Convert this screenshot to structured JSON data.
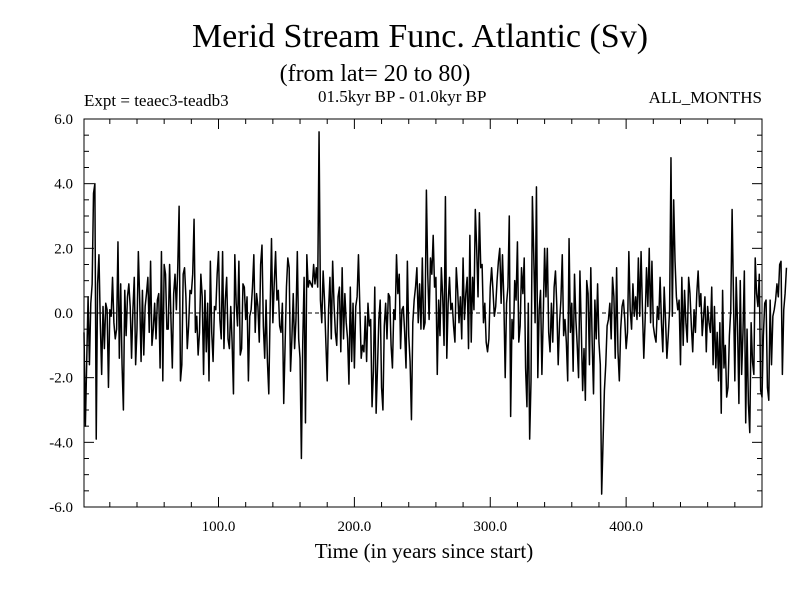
{
  "header": {
    "title": "Merid Stream Func. Atlantic (Sv)",
    "subtitle": "(from lat= 20 to 80)",
    "experiment": "Expt = teaec3-teadb3",
    "period": "01.5kyr BP - 01.0kyr BP",
    "months": "ALL_MONTHS"
  },
  "chart_data": {
    "type": "line",
    "xlabel": "Time (in years since start)",
    "ylabel": "",
    "xlim": [
      1,
      500
    ],
    "ylim": [
      -6,
      6
    ],
    "xticks": [
      100,
      200,
      300,
      400
    ],
    "xtick_labels": [
      "100.0",
      "200.0",
      "300.0",
      "400.0"
    ],
    "yticks": [
      -6,
      -4,
      -2,
      0,
      2,
      4,
      6
    ],
    "ytick_labels": [
      "-6.0",
      "-4.0",
      "-2.0",
      "0.0",
      "2.0",
      "4.0",
      "6.0"
    ],
    "zero_line": true,
    "grid": false,
    "series": [
      {
        "color": "#000000",
        "x_start": 1,
        "x_step": 1,
        "values": [
          -0.6,
          -3.5,
          -1.5,
          0.5,
          -1.6,
          0.3,
          0.9,
          3.7,
          4.0,
          -3.9,
          0.9,
          1.8,
          -0.3,
          -1.9,
          0.2,
          -1.1,
          0.3,
          0.1,
          -2.3,
          0.1,
          -0.1,
          1.1,
          -0.3,
          -0.8,
          -0.5,
          2.2,
          -1.4,
          0.9,
          -1.6,
          -3.0,
          0.7,
          -0.7,
          0.5,
          0.9,
          0.2,
          -1.4,
          0.1,
          1.1,
          -1.6,
          -0.5,
          1.9,
          0.4,
          -1.5,
          0.7,
          -1.3,
          0.2,
          0.6,
          1.1,
          -0.6,
          1.6,
          -1.0,
          -0.5,
          0.3,
          -0.8,
          0.4,
          0.6,
          -1.7,
          1.9,
          -2.1,
          1.5,
          1.2,
          -0.5,
          -0.5,
          1.5,
          -0.2,
          -1.7,
          0.6,
          1.2,
          0.1,
          1.4,
          3.3,
          -2.1,
          -1.6,
          1.2,
          1.4,
          0.5,
          -1.1,
          -0.4,
          0.7,
          0.6,
          1.2,
          2.9,
          -0.6,
          -0.1,
          -1.3,
          -0.6,
          1.2,
          0.5,
          -1.9,
          0.7,
          -1.2,
          0.3,
          -2.1,
          1.6,
          -0.6,
          -1.5,
          0.2,
          0.1,
          1.2,
          1.9,
          -0.2,
          -0.8,
          1.9,
          -1.1,
          0.4,
          1.1,
          -0.8,
          -1.1,
          0.2,
          -0.9,
          -2.5,
          1.8,
          0.3,
          -0.4,
          1.6,
          -1.3,
          -1.1,
          0.9,
          0.8,
          -0.2,
          0.5,
          -2.1,
          -0.1,
          0.1,
          0.8,
          1.8,
          -0.6,
          0.6,
          0.2,
          -0.9,
          1.5,
          2.1,
          -0.4,
          -1.4,
          0.4,
          -1.5,
          -2.5,
          0.1,
          2.3,
          -0.3,
          0.9,
          1.9,
          0.4,
          0.7,
          -0.4,
          -0.6,
          0.3,
          -2.8,
          -1.0,
          0.8,
          1.7,
          1.4,
          -1.8,
          -0.8,
          0.6,
          -1.1,
          -0.2,
          1.9,
          -0.8,
          -1.4,
          -4.5,
          -0.9,
          1.1,
          -3.4,
          1.8,
          0.8,
          1.0,
          0.9,
          0.8,
          1.5,
          0.9,
          1.4,
          0.8,
          5.6,
          0.4,
          -0.3,
          1.3,
          0.4,
          -0.9,
          -2.1,
          0.1,
          1.1,
          -0.8,
          1.6,
          0.3,
          -0.6,
          -1.0,
          0.5,
          0.8,
          -1.2,
          1.4,
          -0.8,
          0.6,
          -0.3,
          -0.8,
          -2.2,
          0.8,
          -1.5,
          0.3,
          -1.7,
          0.2,
          0.5,
          1.8,
          0.2,
          -1.4,
          -1.0,
          -1.2,
          -0.1,
          -1.5,
          0.3,
          -0.4,
          -0.2,
          -2.9,
          -1.8,
          0.8,
          -3.1,
          -1.7,
          -0.2,
          0.4,
          -2.3,
          -3.0,
          -0.4,
          0.3,
          -0.8,
          0.6,
          0.5,
          -1.0,
          -1.7,
          0.1,
          -0.2,
          1.8,
          0.6,
          1.2,
          -1.1,
          0.1,
          0.2,
          -0.6,
          -1.7,
          1.6,
          -0.7,
          -1.5,
          -3.3,
          -0.3,
          0.4,
          0.8,
          1.4,
          -0.3,
          0.9,
          -0.5,
          1.7,
          -0.5,
          -0.3,
          3.8,
          1.2,
          -0.2,
          1.7,
          1.2,
          2.4,
          0.8,
          1.1,
          -1.9,
          0.4,
          -0.7,
          1.4,
          0.5,
          -1.0,
          3.6,
          -1.4,
          0.3,
          1.1,
          0.1,
          0.3,
          -0.4,
          -0.9,
          1.4,
          0.7,
          -0.3,
          0.5,
          -0.8,
          1.7,
          -0.2,
          0.6,
          1.1,
          -1.1,
          2.4,
          -0.9,
          1.1,
          0.1,
          3.2,
          2.0,
          0.5,
          3.1,
          1.4,
          1.5,
          -0.3,
          0.3,
          -0.9,
          -1.2,
          -0.8,
          0.8,
          1.4,
          0.7,
          -0.1,
          0.2,
          1.0,
          1.6,
          2.0,
          0.3,
          1.8,
          0.4,
          -2.0,
          0.3,
          0.8,
          3.0,
          -3.2,
          -0.2,
          -0.8,
          1.0,
          0.4,
          2.2,
          -0.9,
          -0.4,
          1.4,
          0.6,
          1.7,
          -1.7,
          -2.9,
          0.3,
          -3.9,
          -2.1,
          3.6,
          1.8,
          -0.3,
          3.9,
          -2.0,
          0.1,
          0.7,
          -1.9,
          -0.1,
          2.0,
          0.5,
          2.0,
          -0.6,
          -1.2,
          0.3,
          -0.9,
          0.8,
          1.3,
          0.2,
          -1.6,
          -0.3,
          0.4,
          1.8,
          -0.7,
          -0.2,
          -0.9,
          -2.1,
          2.3,
          -0.6,
          0.3,
          -1.8,
          1.2,
          -0.2,
          -1.0,
          -2.0,
          1.3,
          -0.5,
          -2.4,
          -1.1,
          -2.7,
          1.0,
          0.6,
          -1.6,
          1.4,
          -0.9,
          -2.5,
          0.4,
          -0.8,
          0.9,
          -0.9,
          -1.6,
          -5.6,
          -4.0,
          -2.4,
          -1.6,
          -0.4,
          -0.2,
          0.3,
          -0.8,
          1.1,
          0.5,
          -1.4,
          1.4,
          -1.2,
          -2.1,
          -0.5,
          0.2,
          0.4,
          -0.2,
          -1.1,
          -0.6,
          1.9,
          0.1,
          -0.5,
          0.9,
          -0.1,
          0.5,
          -0.2,
          1.7,
          -0.1,
          1.9,
          0.1,
          -1.4,
          -0.2,
          1.4,
          0.2,
          2.0,
          -0.3,
          1.6,
          -0.4,
          -0.7,
          -0.9,
          0.2,
          -0.2,
          1.1,
          -0.3,
          -1.2,
          0.8,
          -0.2,
          -1.4,
          -0.7,
          0.1,
          4.8,
          -0.1,
          3.5,
          1.6,
          0.5,
          0.1,
          0.4,
          -1.6,
          1.1,
          -1.0,
          0.7,
          -0.3,
          -0.9,
          1.1,
          0.6,
          -0.4,
          -1.2,
          0.1,
          -0.6,
          0.6,
          1.3,
          0.2,
          0.6,
          -0.7,
          -0.1,
          0.5,
          -1.2,
          0.2,
          -0.3,
          -0.6,
          0.8,
          -1.6,
          0.2,
          -1.7,
          -0.6,
          -2.1,
          -0.3,
          -3.1,
          0.7,
          -1.7,
          -1.0,
          -2.6,
          -2.3,
          -0.7,
          0.1,
          3.2,
          0.5,
          -2.1,
          1.1,
          -0.4,
          -2.8,
          1.0,
          -1.9,
          -0.6,
          1.3,
          -3.4,
          -0.5,
          -2.8,
          -3.7,
          -0.3,
          -1.5,
          -1.9,
          1.7,
          0.6,
          0.2,
          1.2,
          -2.4,
          -2.6,
          -0.7,
          0.3,
          0.4,
          -2.3,
          -2.7,
          0.4,
          -1.6,
          -0.1,
          0.1,
          0.4,
          0.9,
          0.5,
          1.5,
          1.6,
          -1.9,
          0.1,
          0.6,
          1.4
        ]
      }
    ]
  }
}
